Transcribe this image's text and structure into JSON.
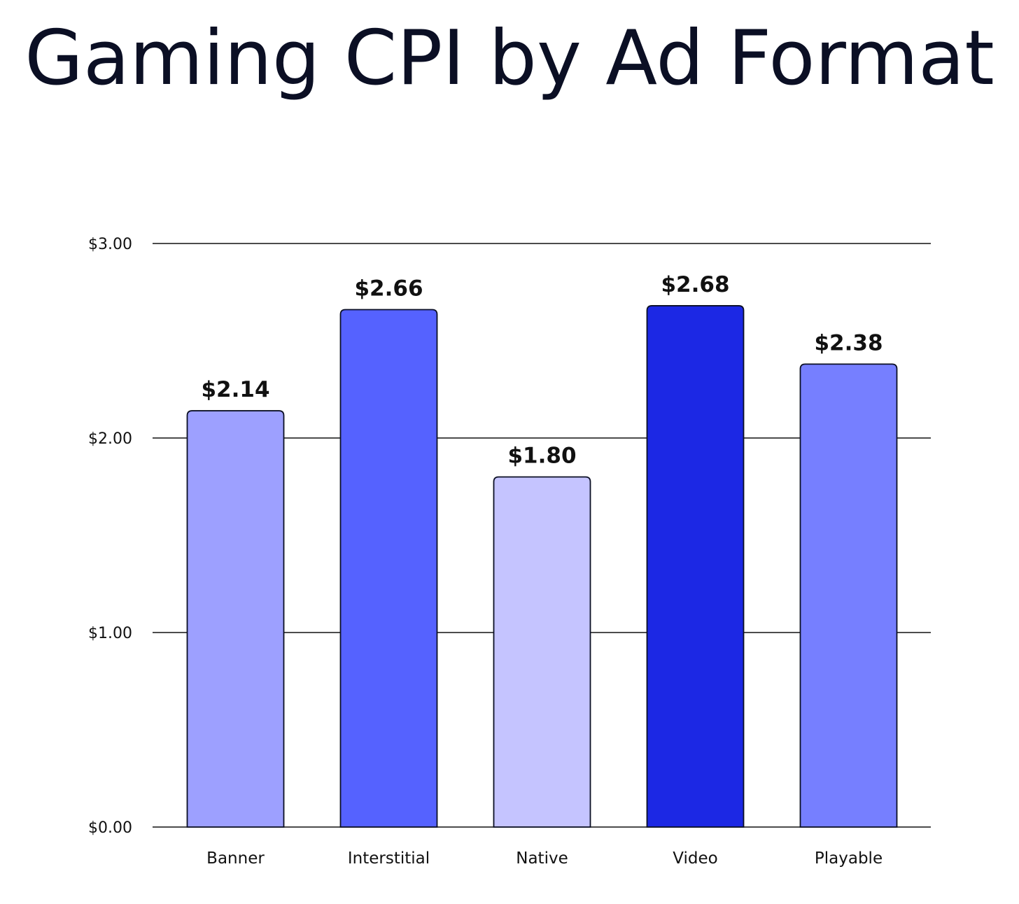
{
  "chart_data": {
    "type": "bar",
    "title": "Gaming CPI by Ad Format",
    "xlabel": "",
    "ylabel": "",
    "categories": [
      "Banner",
      "Interstitial",
      "Native",
      "Video",
      "Playable"
    ],
    "values": [
      2.14,
      2.66,
      1.8,
      2.68,
      2.38
    ],
    "value_labels": [
      "$2.14",
      "$2.66",
      "$1.80",
      "$2.68",
      "$2.38"
    ],
    "bar_colors": [
      "#9da0ff",
      "#5562ff",
      "#c5c4ff",
      "#1c28e4",
      "#767fff"
    ],
    "ylim": [
      0,
      3
    ],
    "y_ticks": [
      0,
      1,
      2,
      3
    ],
    "y_tick_labels": [
      "$0.00",
      "$1.00",
      "$2.00",
      "$3.00"
    ],
    "grid": true,
    "legend": "none"
  }
}
